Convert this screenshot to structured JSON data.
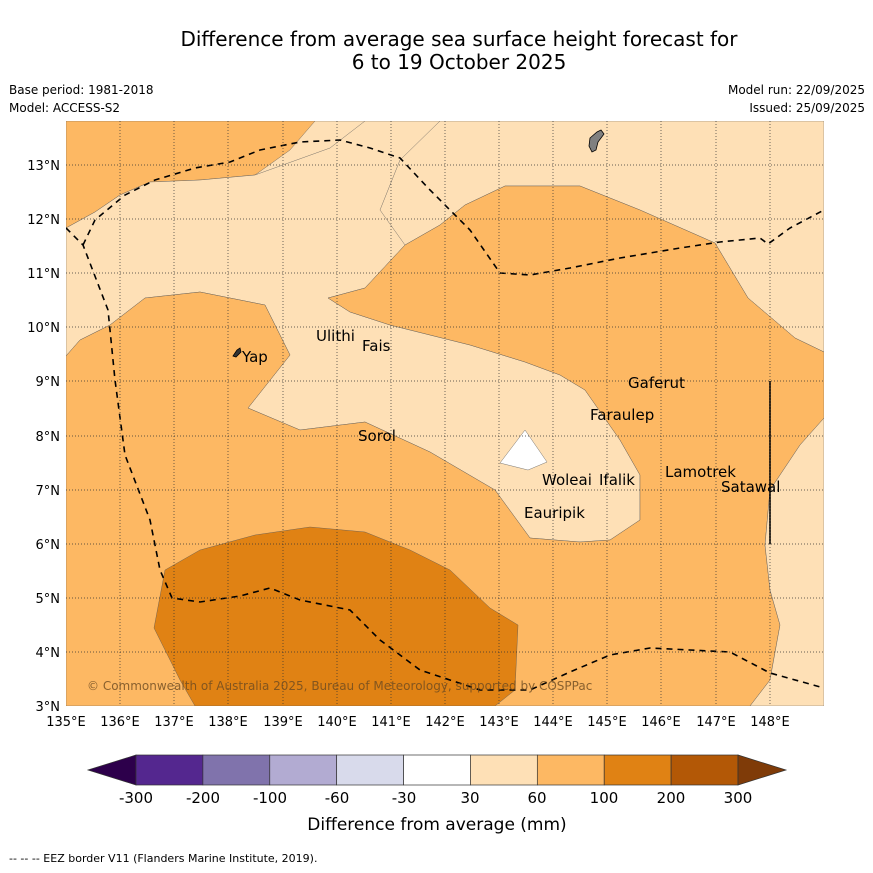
{
  "title_line1": "Difference from average sea surface height forecast for",
  "title_line2": "6 to 19 October 2025",
  "base_period": "Base period: 1981-2018",
  "model": "Model: ACCESS-S2",
  "model_run": "Model run: 22/09/2025",
  "issued": "Issued: 25/09/2025",
  "copyright": "© Commonwealth of Australia 2025, Bureau of Meteorology, supported by COSPPac",
  "footer_note": "--  --  -- EEZ border V11 (Flanders Marine Institute, 2019).",
  "map": {
    "lon_ticks": [
      "135°E",
      "136°E",
      "137°E",
      "138°E",
      "139°E",
      "140°E",
      "141°E",
      "142°E",
      "143°E",
      "144°E",
      "145°E",
      "146°E",
      "147°E",
      "148°E"
    ],
    "lat_ticks": [
      "3°N",
      "4°N",
      "5°N",
      "6°N",
      "7°N",
      "8°N",
      "9°N",
      "10°N",
      "11°N",
      "12°N",
      "13°N"
    ],
    "places": [
      {
        "name": "Yap",
        "lon": 138.2,
        "lat": 9.5
      },
      {
        "name": "Ulithi",
        "lon": 139.7,
        "lat": 9.9
      },
      {
        "name": "Fais",
        "lon": 140.5,
        "lat": 9.7
      },
      {
        "name": "Sorol",
        "lon": 140.4,
        "lat": 8.1
      },
      {
        "name": "Gaferut",
        "lon": 145.4,
        "lat": 9.0
      },
      {
        "name": "Faraulep",
        "lon": 144.9,
        "lat": 8.4
      },
      {
        "name": "Woleai",
        "lon": 143.9,
        "lat": 7.2
      },
      {
        "name": "Ifalik",
        "lon": 144.5,
        "lat": 7.2
      },
      {
        "name": "Lamotrek",
        "lon": 146.4,
        "lat": 7.35
      },
      {
        "name": "Satawal",
        "lon": 147.1,
        "lat": 7.1
      },
      {
        "name": "Eauripik",
        "lon": 143.5,
        "lat": 6.6
      }
    ]
  },
  "colorbar": {
    "label": "Difference from average (mm)",
    "ticks": [
      "-300",
      "-200",
      "-100",
      "-60",
      "-30",
      "30",
      "60",
      "100",
      "200",
      "300"
    ],
    "colors": [
      "#54278f",
      "#8073ac",
      "#b2abd2",
      "#d8daeb",
      "#ffffff",
      "#fee0b6",
      "#fdb863",
      "#e08214",
      "#b35806"
    ],
    "under_color": "#2d004b",
    "over_color": "#7f3b08"
  }
}
